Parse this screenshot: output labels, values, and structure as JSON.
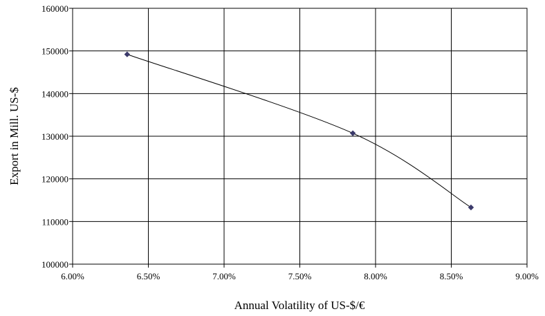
{
  "chart_data": {
    "type": "line",
    "title": "",
    "xlabel": "Annual Volatility of US-$/€",
    "ylabel": "Export in Mill. US-$",
    "xlim": [
      0.06,
      0.09
    ],
    "ylim": [
      100000,
      160000
    ],
    "x_ticks": [
      0.06,
      0.065,
      0.07,
      0.075,
      0.08,
      0.085,
      0.09
    ],
    "x_tick_labels": [
      "6.00%",
      "6.50%",
      "7.00%",
      "7.50%",
      "8.00%",
      "8.50%",
      "9.00%"
    ],
    "y_ticks": [
      100000,
      110000,
      120000,
      130000,
      140000,
      150000,
      160000
    ],
    "y_tick_labels": [
      "100000",
      "110000",
      "120000",
      "130000",
      "140000",
      "150000",
      "160000"
    ],
    "grid": true,
    "legend": false,
    "smooth": true,
    "series": [
      {
        "x": [
          0.0636,
          0.0785,
          0.0863
        ],
        "y": [
          149200,
          130700,
          113300
        ],
        "marker": "diamond",
        "marker_color": "#3b3a6b",
        "line_color": "#000000"
      }
    ]
  }
}
